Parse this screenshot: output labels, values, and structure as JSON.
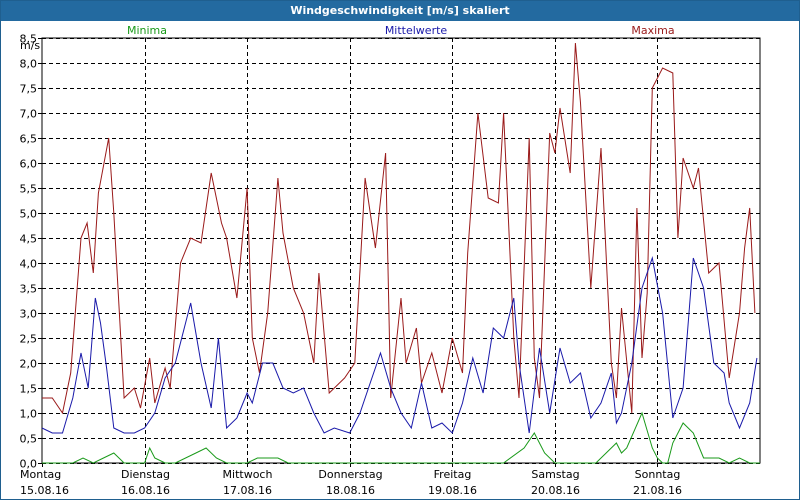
{
  "window": {
    "title": "Windgeschwindigkeit [m/s] skaliert"
  },
  "legend": {
    "minima": "Minima",
    "mittelwerte": "Mittelwerte",
    "maxima": "Maxima"
  },
  "colors": {
    "title_bar": "#236aa0",
    "minima": "#1a9a1a",
    "mittelwerte": "#1a1aaa",
    "maxima": "#9a1a1a",
    "grid": "#000000"
  },
  "chart_data": {
    "type": "line",
    "title": "Windgeschwindigkeit [m/s] skaliert",
    "ylabel": "m/s",
    "ylim": [
      0,
      8.5
    ],
    "yticks": [
      "0,0",
      "0,5",
      "1,0",
      "1,5",
      "2,0",
      "2,5",
      "3,0",
      "3,5",
      "4,0",
      "4,5",
      "5,0",
      "5,5",
      "6,0",
      "6,5",
      "7,0",
      "7,5",
      "8,0",
      "8,5"
    ],
    "x_range_days": [
      0,
      7
    ],
    "x_day_labels": [
      {
        "day": "Montag",
        "date": "15.08.16"
      },
      {
        "day": "Dienstag",
        "date": "16.08.16"
      },
      {
        "day": "Mittwoch",
        "date": "17.08.16"
      },
      {
        "day": "Donnerstag",
        "date": "18.08.16"
      },
      {
        "day": "Freitag",
        "date": "19.08.16"
      },
      {
        "day": "Samstag",
        "date": "20.08.16"
      },
      {
        "day": "Sonntag",
        "date": "21.08.16"
      }
    ],
    "grid": true,
    "series": [
      {
        "name": "Maxima",
        "x": [
          0,
          0.1,
          0.2,
          0.28,
          0.38,
          0.44,
          0.5,
          0.55,
          0.65,
          0.7,
          0.8,
          0.9,
          0.96,
          1.05,
          1.1,
          1.2,
          1.25,
          1.35,
          1.45,
          1.55,
          1.65,
          1.75,
          1.8,
          1.9,
          2.0,
          2.05,
          2.12,
          2.2,
          2.3,
          2.35,
          2.45,
          2.55,
          2.65,
          2.7,
          2.8,
          2.95,
          3.05,
          3.15,
          3.25,
          3.35,
          3.4,
          3.5,
          3.55,
          3.65,
          3.7,
          3.8,
          3.9,
          4.0,
          4.1,
          4.15,
          4.25,
          4.35,
          4.45,
          4.5,
          4.6,
          4.65,
          4.75,
          4.8,
          4.85,
          4.95,
          5.0,
          5.05,
          5.15,
          5.2,
          5.25,
          5.35,
          5.45,
          5.55,
          5.6,
          5.65,
          5.75,
          5.8,
          5.85,
          5.9,
          5.95,
          6.05,
          6.15,
          6.2,
          6.25,
          6.35,
          6.4,
          6.5,
          6.6,
          6.7,
          6.8,
          6.85,
          6.9,
          6.95
        ],
        "values": [
          1.3,
          1.3,
          1.0,
          1.8,
          4.5,
          4.8,
          3.8,
          5.4,
          6.5,
          5.0,
          1.3,
          1.5,
          1.1,
          2.1,
          1.2,
          1.9,
          1.5,
          4.0,
          4.5,
          4.4,
          5.8,
          4.8,
          4.5,
          3.3,
          5.5,
          2.5,
          1.8,
          3.0,
          5.7,
          4.6,
          3.5,
          3.0,
          2.0,
          3.8,
          1.4,
          1.7,
          2.0,
          5.7,
          4.3,
          6.2,
          1.3,
          3.3,
          2.0,
          2.7,
          1.6,
          2.2,
          1.4,
          2.5,
          1.8,
          4.2,
          7.0,
          5.3,
          5.2,
          7.0,
          2.5,
          1.3,
          6.5,
          2.1,
          1.3,
          6.6,
          6.2,
          7.1,
          5.8,
          8.4,
          7.2,
          3.5,
          6.3,
          2.0,
          1.3,
          3.1,
          1.0,
          5.1,
          2.1,
          3.4,
          7.5,
          7.9,
          7.8,
          4.5,
          6.1,
          5.5,
          5.9,
          3.8,
          4.0,
          1.7,
          3.0,
          4.3,
          5.1,
          3.0
        ]
      },
      {
        "name": "Mittelwerte",
        "x": [
          0,
          0.1,
          0.2,
          0.3,
          0.38,
          0.45,
          0.52,
          0.57,
          0.63,
          0.7,
          0.8,
          0.9,
          1.0,
          1.1,
          1.2,
          1.3,
          1.45,
          1.55,
          1.65,
          1.72,
          1.8,
          1.9,
          2.0,
          2.05,
          2.15,
          2.25,
          2.35,
          2.45,
          2.55,
          2.65,
          2.75,
          2.85,
          3.0,
          3.1,
          3.2,
          3.3,
          3.4,
          3.5,
          3.6,
          3.7,
          3.8,
          3.9,
          4.0,
          4.1,
          4.2,
          4.3,
          4.4,
          4.5,
          4.6,
          4.65,
          4.75,
          4.85,
          4.95,
          5.05,
          5.15,
          5.25,
          5.35,
          5.45,
          5.55,
          5.6,
          5.65,
          5.75,
          5.85,
          5.95,
          6.05,
          6.15,
          6.25,
          6.35,
          6.45,
          6.55,
          6.65,
          6.7,
          6.8,
          6.9,
          6.97
        ],
        "values": [
          0.7,
          0.6,
          0.6,
          1.3,
          2.2,
          1.5,
          3.3,
          2.8,
          1.9,
          0.7,
          0.6,
          0.6,
          0.7,
          1.0,
          1.7,
          2.0,
          3.2,
          2.0,
          1.1,
          2.5,
          0.7,
          0.9,
          1.4,
          1.2,
          2.0,
          2.0,
          1.5,
          1.4,
          1.5,
          1.0,
          0.6,
          0.7,
          0.6,
          1.0,
          1.6,
          2.2,
          1.5,
          1.0,
          0.7,
          1.6,
          0.7,
          0.8,
          0.6,
          1.2,
          2.1,
          1.4,
          2.7,
          2.5,
          3.3,
          2.0,
          0.6,
          2.3,
          1.0,
          2.3,
          1.6,
          1.8,
          0.9,
          1.2,
          1.8,
          0.8,
          1.0,
          2.0,
          3.5,
          4.1,
          3.0,
          0.9,
          1.5,
          4.1,
          3.5,
          2.0,
          1.8,
          1.2,
          0.7,
          1.2,
          2.1
        ]
      },
      {
        "name": "Minima",
        "x": [
          0,
          0.3,
          0.4,
          0.5,
          0.6,
          0.7,
          0.8,
          1.0,
          1.05,
          1.1,
          1.2,
          1.3,
          1.5,
          1.6,
          1.7,
          1.8,
          2.0,
          2.1,
          2.3,
          2.4,
          2.6,
          3.0,
          4.5,
          4.7,
          4.8,
          4.9,
          5.0,
          5.1,
          5.4,
          5.6,
          5.65,
          5.7,
          5.85,
          5.95,
          6.0,
          6.05,
          6.1,
          6.15,
          6.25,
          6.35,
          6.45,
          6.6,
          6.7,
          6.8,
          6.9,
          7.0
        ],
        "values": [
          0.0,
          0.0,
          0.1,
          0.0,
          0.1,
          0.2,
          0.0,
          0.0,
          0.3,
          0.1,
          0.0,
          0.0,
          0.2,
          0.3,
          0.1,
          0.0,
          0.0,
          0.1,
          0.1,
          0.0,
          0.0,
          0.0,
          0.0,
          0.3,
          0.6,
          0.2,
          0.0,
          0.0,
          0.0,
          0.4,
          0.2,
          0.3,
          1.0,
          0.3,
          0.1,
          0.0,
          0.0,
          0.4,
          0.8,
          0.6,
          0.1,
          0.1,
          0.0,
          0.1,
          0.0,
          0.0
        ]
      }
    ]
  }
}
